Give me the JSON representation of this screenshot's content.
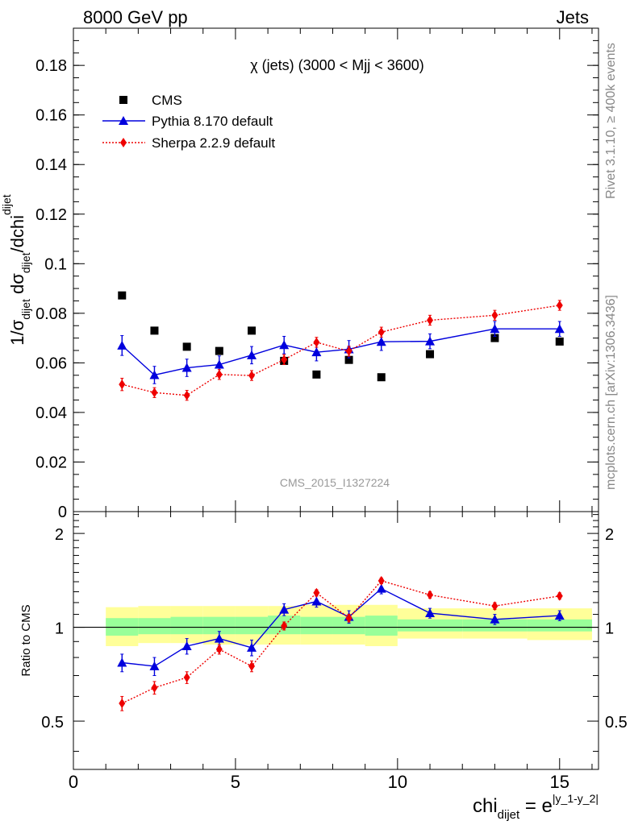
{
  "header": {
    "energy_label": "8000 GeV pp",
    "process_label": "Jets"
  },
  "side_labels": {
    "rivet": "Rivet 3.1.10, ≥ 400k events",
    "mcplots": "mcplots.cern.ch [arXiv:1306.3436]"
  },
  "watermark": "CMS_2015_I1327224",
  "chart_data": [
    {
      "type": "scatter",
      "title": "χ (jets) (3000 < Mjj < 3600)",
      "ylabel": {
        "main": "1/σ",
        "sub1": "dijet",
        "mid": " dσ",
        "sub2": "dijet",
        "tail": "/dchi",
        "sub3": "dijet"
      },
      "xlim": [
        0,
        16.2
      ],
      "ylim": [
        0,
        0.195
      ],
      "yticks": [
        0,
        0.02,
        0.04,
        0.06,
        0.08,
        0.1,
        0.12,
        0.14,
        0.16,
        0.18
      ],
      "ytick_labels": [
        "0",
        "0.02",
        "0.04",
        "0.06",
        "0.08",
        "0.1",
        "0.12",
        "0.14",
        "0.16",
        "0.18"
      ],
      "legend_position": "top-left",
      "series": [
        {
          "name": "CMS",
          "color": "#000000",
          "marker": "square",
          "x": [
            1.5,
            2.5,
            3.5,
            4.5,
            5.5,
            6.5,
            7.5,
            8.5,
            9.5,
            11,
            13,
            15
          ],
          "y": [
            0.0872,
            0.073,
            0.0665,
            0.0648,
            0.073,
            0.0608,
            0.0553,
            0.0612,
            0.0542,
            0.0635,
            0.07,
            0.0686
          ]
        },
        {
          "name": "Pythia 8.170 default",
          "color": "#0000dd",
          "marker": "triangle",
          "x": [
            1.5,
            2.5,
            3.5,
            4.5,
            5.5,
            6.5,
            7.5,
            8.5,
            9.5,
            11,
            13,
            15
          ],
          "y": [
            0.067,
            0.0551,
            0.058,
            0.0593,
            0.0631,
            0.0672,
            0.0643,
            0.0655,
            0.0685,
            0.0687,
            0.0737,
            0.0737
          ],
          "err": [
            0.004,
            0.0035,
            0.0035,
            0.0035,
            0.0035,
            0.0035,
            0.0035,
            0.0035,
            0.0035,
            0.003,
            0.003,
            0.003
          ]
        },
        {
          "name": "Sherpa 2.2.9 default",
          "color": "#ee0000",
          "marker": "diamond",
          "x": [
            1.5,
            2.5,
            3.5,
            4.5,
            5.5,
            6.5,
            7.5,
            8.5,
            9.5,
            11,
            13,
            15
          ],
          "y": [
            0.0513,
            0.048,
            0.0469,
            0.0553,
            0.0549,
            0.0613,
            0.0683,
            0.0647,
            0.0724,
            0.0772,
            0.0792,
            0.0832
          ],
          "err": [
            0.0025,
            0.002,
            0.002,
            0.002,
            0.002,
            0.002,
            0.002,
            0.002,
            0.002,
            0.002,
            0.002,
            0.002
          ]
        }
      ]
    },
    {
      "type": "scatter",
      "ylabel": "Ratio to CMS",
      "xlabel": {
        "main": "chi",
        "sub": "dijet",
        "mid": " = e",
        "sup": "|y_1-y_2|"
      },
      "xlim": [
        0,
        16.2
      ],
      "ylim": [
        0.35,
        2.35
      ],
      "yscale": "log",
      "xticks": [
        0,
        5,
        10,
        15
      ],
      "xtick_labels": [
        "0",
        "5",
        "10",
        "15"
      ],
      "yticks": [
        0.5,
        1,
        2
      ],
      "ytick_labels": [
        "0.5",
        "1",
        "2"
      ],
      "reference_line": 1,
      "bands": {
        "edges": [
          1,
          2,
          3,
          4,
          5,
          6,
          7,
          8,
          9,
          10,
          12,
          14,
          16
        ],
        "inner": [
          [
            0.94,
            1.07
          ],
          [
            0.95,
            1.07
          ],
          [
            0.95,
            1.08
          ],
          [
            0.95,
            1.08
          ],
          [
            0.95,
            1.08
          ],
          [
            0.95,
            1.09
          ],
          [
            0.95,
            1.08
          ],
          [
            0.95,
            1.08
          ],
          [
            0.94,
            1.09
          ],
          [
            0.97,
            1.06
          ],
          [
            0.97,
            1.06
          ],
          [
            0.97,
            1.06
          ]
        ],
        "outer": [
          [
            0.87,
            1.16
          ],
          [
            0.89,
            1.17
          ],
          [
            0.89,
            1.17
          ],
          [
            0.88,
            1.17
          ],
          [
            0.88,
            1.17
          ],
          [
            0.88,
            1.17
          ],
          [
            0.88,
            1.18
          ],
          [
            0.88,
            1.18
          ],
          [
            0.87,
            1.18
          ],
          [
            0.92,
            1.15
          ],
          [
            0.92,
            1.15
          ],
          [
            0.91,
            1.15
          ]
        ],
        "inner_color": "#99ff99",
        "outer_color": "#ffff99"
      },
      "series": [
        {
          "name": "Pythia 8.170 default",
          "color": "#0000dd",
          "marker": "triangle",
          "x": [
            1.5,
            2.5,
            3.5,
            4.5,
            5.5,
            6.5,
            7.5,
            8.5,
            9.5,
            11,
            13,
            15
          ],
          "y": [
            0.77,
            0.75,
            0.87,
            0.92,
            0.86,
            1.14,
            1.21,
            1.08,
            1.33,
            1.11,
            1.06,
            1.09
          ],
          "err": [
            0.05,
            0.05,
            0.05,
            0.05,
            0.05,
            0.05,
            0.05,
            0.05,
            0.05,
            0.04,
            0.04,
            0.04
          ]
        },
        {
          "name": "Sherpa 2.2.9 default",
          "color": "#ee0000",
          "marker": "diamond",
          "x": [
            1.5,
            2.5,
            3.5,
            4.5,
            5.5,
            6.5,
            7.5,
            8.5,
            9.5,
            11,
            13,
            15
          ],
          "y": [
            0.57,
            0.64,
            0.69,
            0.85,
            0.75,
            1.01,
            1.29,
            1.07,
            1.41,
            1.27,
            1.17,
            1.26
          ],
          "err": [
            0.03,
            0.03,
            0.03,
            0.03,
            0.03,
            0.03,
            0.03,
            0.03,
            0.03,
            0.03,
            0.03,
            0.03
          ]
        }
      ]
    }
  ]
}
